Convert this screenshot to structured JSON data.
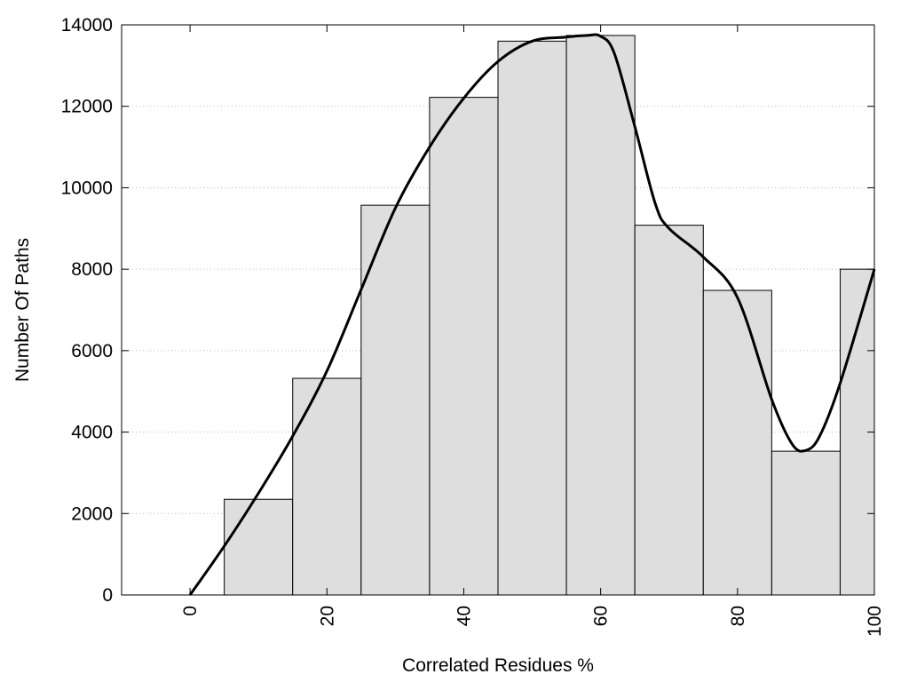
{
  "chart_data": {
    "type": "bar",
    "xlabel": "Correlated Residues %",
    "ylabel": "Number Of Paths",
    "xlim": [
      -10,
      100
    ],
    "ylim": [
      0,
      14000
    ],
    "x_ticks": [
      0,
      20,
      40,
      60,
      80,
      100
    ],
    "y_ticks": [
      0,
      2000,
      4000,
      6000,
      8000,
      10000,
      12000,
      14000
    ],
    "grid": "horizontal dotted",
    "legend": "none",
    "bar_color": "#dedede",
    "bar_edge_color": "#000000",
    "line_color": "#000000",
    "bars": [
      {
        "x_start": 5,
        "x_end": 15,
        "value": 2350
      },
      {
        "x_start": 15,
        "x_end": 25,
        "value": 5320
      },
      {
        "x_start": 25,
        "x_end": 35,
        "value": 9570
      },
      {
        "x_start": 35,
        "x_end": 45,
        "value": 12220
      },
      {
        "x_start": 45,
        "x_end": 55,
        "value": 13600
      },
      {
        "x_start": 55,
        "x_end": 65,
        "value": 13740
      },
      {
        "x_start": 65,
        "x_end": 75,
        "value": 9080
      },
      {
        "x_start": 75,
        "x_end": 85,
        "value": 7480
      },
      {
        "x_start": 85,
        "x_end": 95,
        "value": 3530
      },
      {
        "x_start": 95,
        "x_end": 100,
        "value": 8000
      }
    ],
    "curve": {
      "x": [
        0,
        5,
        10,
        15,
        20,
        25,
        30,
        35,
        40,
        45,
        50,
        55,
        58,
        60,
        62,
        65,
        68,
        70,
        75,
        80,
        85,
        88,
        90,
        92,
        95,
        100
      ],
      "y": [
        0,
        1200,
        2500,
        3900,
        5500,
        7500,
        9500,
        11000,
        12200,
        13100,
        13600,
        13700,
        13740,
        13720,
        13300,
        11500,
        9600,
        9000,
        8300,
        7300,
        4800,
        3700,
        3550,
        3900,
        5200,
        8000
      ]
    }
  }
}
